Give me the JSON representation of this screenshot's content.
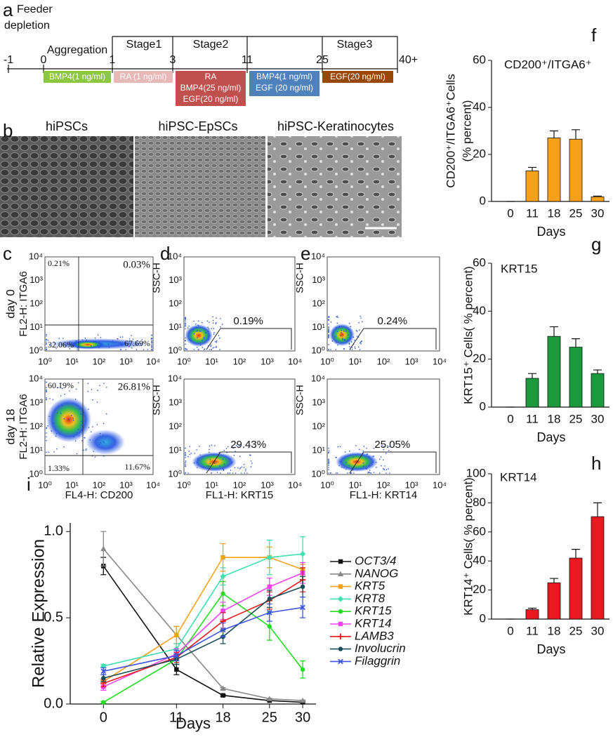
{
  "panel_labels": [
    "a",
    "b",
    "c",
    "d",
    "e",
    "f",
    "g",
    "h",
    "i"
  ],
  "timeline": {
    "pre_phase": [
      "Feeder",
      "depletion"
    ],
    "days": [
      "-1",
      "0",
      "1",
      "3",
      "11",
      "25",
      "40+"
    ],
    "phases": [
      "Aggregation",
      "Stage1",
      "Stage2",
      "Stage3"
    ],
    "treatments": [
      [
        "BMP4(1 ng/ml)"
      ],
      [
        "RA (1 ng/ml)"
      ],
      [
        "RA",
        "BMP4(25 ng/ml)",
        "EGF(20 ng/ml)"
      ],
      [
        "BMP4(1 ng/ml)",
        "EGF (20 ng/ml)"
      ],
      [
        "EGF(20 ng/ml)"
      ]
    ]
  },
  "micrographs": {
    "titles": [
      "hiPSCs",
      "hiPSC-EpSCs",
      "hiPSC-Keratinocytes"
    ]
  },
  "flow": {
    "tick_labels": [
      "10⁰",
      "10¹",
      "10²",
      "10³",
      "10⁴"
    ],
    "row_labels": [
      "day 0",
      "day 18"
    ],
    "panels": [
      {
        "ylabel": "FL2-H: ITGA6",
        "xlabel": "FL4-H: CD200",
        "rows": [
          [
            "0.21%",
            "0.03%",
            "32.06%",
            "67.69%"
          ],
          [
            "60.19%",
            "26.81%",
            "1.33%",
            "11.67%"
          ]
        ]
      },
      {
        "ylabel": "SSC-H",
        "xlabel": "FL1-H: KRT15",
        "rows": [
          [
            "0.19%"
          ],
          [
            "29.43%"
          ]
        ]
      },
      {
        "ylabel": "SSC-H",
        "xlabel": "FL1-H: KRT14",
        "rows": [
          [
            "0.24%"
          ],
          [
            "25.05%"
          ]
        ]
      }
    ]
  },
  "chart_data": [
    {
      "type": "bar",
      "title": "CD200⁺/ITGA6⁺",
      "ylabel": [
        "CD200⁺/ITGA6⁺Cells",
        "(% percent)"
      ],
      "xlabel": "Days",
      "categories": [
        "0",
        "11",
        "18",
        "25",
        "30"
      ],
      "values": [
        0,
        13,
        27,
        26.5,
        2
      ],
      "errors": [
        0,
        1.5,
        3,
        4,
        0.3
      ],
      "color": "#f7a11a",
      "ylim": [
        0,
        60
      ],
      "yticks": [
        0,
        20,
        40,
        60
      ]
    },
    {
      "type": "bar",
      "title": "KRT15",
      "ylabel": [
        "KRT15⁺ Cells( % percent)"
      ],
      "xlabel": "Days",
      "categories": [
        "0",
        "11",
        "18",
        "25",
        "30"
      ],
      "values": [
        0,
        12,
        29.5,
        25,
        14
      ],
      "errors": [
        0,
        2,
        4,
        3.5,
        1.5
      ],
      "color": "#1b9a3d",
      "ylim": [
        0,
        60
      ],
      "yticks": [
        0,
        20,
        40,
        60
      ]
    },
    {
      "type": "bar",
      "title": "KRT14",
      "ylabel": [
        "KRT14⁺ Cells( % percent)"
      ],
      "xlabel": "Days",
      "categories": [
        "0",
        "11",
        "18",
        "25",
        "30"
      ],
      "values": [
        0,
        6.5,
        25,
        42,
        70.5
      ],
      "errors": [
        0,
        1,
        3,
        6,
        9.5
      ],
      "color": "#e8191f",
      "ylim": [
        0,
        100
      ],
      "yticks": [
        0,
        20,
        40,
        60,
        80,
        100
      ]
    },
    {
      "type": "line",
      "ylabel": "Relative Expression",
      "xlabel": "Days",
      "x": [
        0,
        11,
        18,
        25,
        30
      ],
      "xlim": [
        -5,
        32
      ],
      "xticks": [
        0,
        11,
        18,
        25,
        30
      ],
      "ylim": [
        0,
        1.05
      ],
      "yticks": [
        {
          "value": 0,
          "label": "0.0"
        },
        0.5,
        {
          "value": 1,
          "label": "1.0"
        }
      ],
      "series": [
        {
          "name": "OCT3/4",
          "color": "#111111",
          "marker": "square",
          "values": [
            0.8,
            0.2,
            0.05,
            0.02,
            0.01
          ],
          "errors": [
            0.05,
            0.03,
            0.005,
            0.003,
            0.003
          ]
        },
        {
          "name": "NANOG",
          "color": "#888888",
          "marker": "triangle",
          "values": [
            0.9,
            0.4,
            0.09,
            0.03,
            0.02
          ],
          "errors": [
            0.1,
            0.05,
            0.005,
            0.003,
            0.003
          ]
        },
        {
          "name": "KRT5",
          "color": "#f7a11a",
          "marker": "square",
          "values": [
            0.13,
            0.4,
            0.85,
            0.85,
            0.78
          ],
          "errors": [
            0.02,
            0.05,
            0.08,
            0.06,
            0.03
          ]
        },
        {
          "name": "KRT8",
          "color": "#40e0b0",
          "marker": "diamond",
          "values": [
            0.22,
            0.32,
            0.74,
            0.85,
            0.87
          ],
          "errors": [
            0.01,
            0.03,
            0.05,
            0.1,
            0.1
          ]
        },
        {
          "name": "KRT15",
          "color": "#22dd22",
          "marker": "circle",
          "values": [
            0.01,
            0.26,
            0.64,
            0.45,
            0.2
          ],
          "errors": [
            0.005,
            0.03,
            0.07,
            0.08,
            0.05
          ]
        },
        {
          "name": "KRT14",
          "color": "#f040f0",
          "marker": "square",
          "values": [
            0.1,
            0.29,
            0.54,
            0.68,
            0.76
          ],
          "errors": [
            0.02,
            0.03,
            0.05,
            0.05,
            0.06
          ]
        },
        {
          "name": "LAMB3",
          "color": "#e8191f",
          "marker": "plus",
          "values": [
            0.12,
            0.27,
            0.48,
            0.6,
            0.72
          ],
          "errors": [
            0.02,
            0.03,
            0.05,
            0.05,
            0.07
          ]
        },
        {
          "name": "Involucrin",
          "color": "#1a4d5a",
          "marker": "circle",
          "values": [
            0.15,
            0.26,
            0.39,
            0.61,
            0.68
          ],
          "errors": [
            0.02,
            0.03,
            0.04,
            0.05,
            0.06
          ]
        },
        {
          "name": "Filaggrin",
          "color": "#3d55e0",
          "marker": "x",
          "values": [
            0.19,
            0.28,
            0.43,
            0.53,
            0.56
          ],
          "errors": [
            0.02,
            0.03,
            0.04,
            0.05,
            0.06
          ]
        }
      ]
    }
  ]
}
